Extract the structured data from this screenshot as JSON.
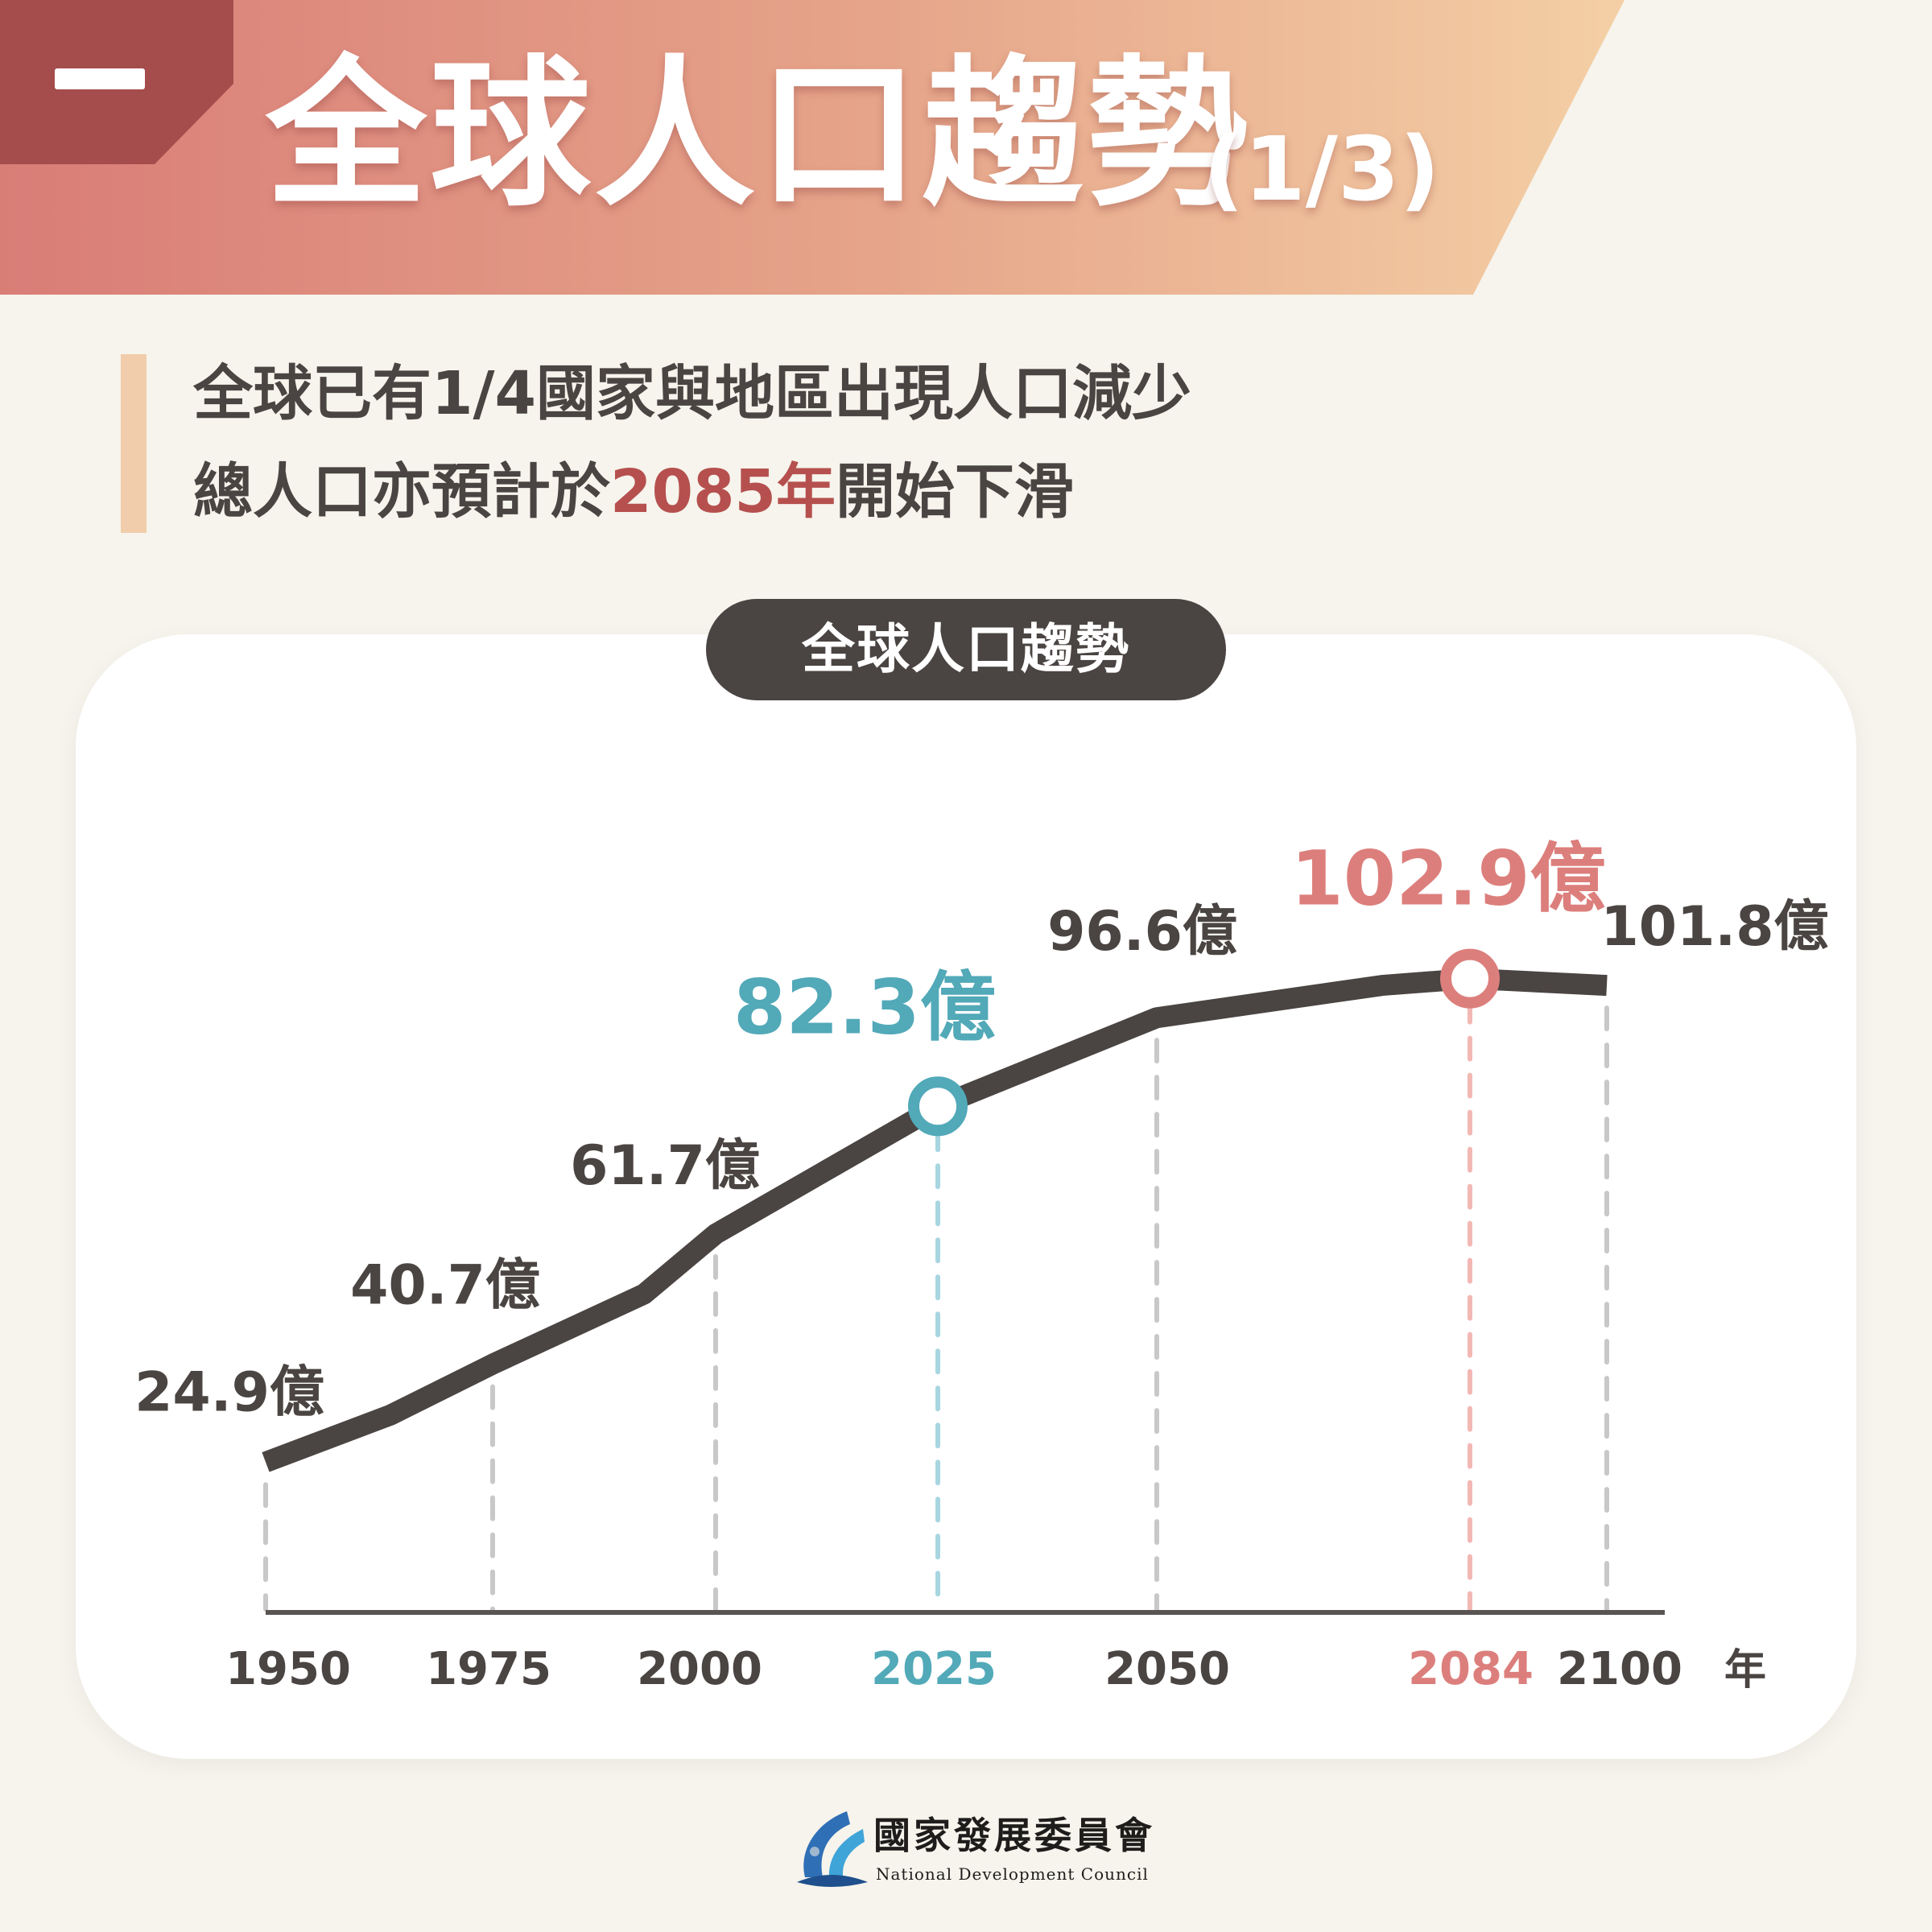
{
  "header": {
    "section_mark": "一",
    "title": "全球人口趨勢",
    "title_suffix": "(1/3)"
  },
  "subtitle": {
    "line1": "全球已有1/4國家與地區出現人口減少",
    "line2_prefix": "總人口亦預計於",
    "line2_highlight": "2085年",
    "line2_suffix": "開始下滑"
  },
  "chart_data": {
    "type": "line",
    "title": "全球人口趨勢",
    "x_unit": "年",
    "x_ticks": [
      "1950",
      "1975",
      "2000",
      "2025",
      "2050",
      "2084",
      "2100"
    ],
    "points": [
      {
        "x": 1950,
        "y": 24.9
      },
      {
        "x": 1964,
        "y": 32.5
      },
      {
        "x": 1975,
        "y": 40.7
      },
      {
        "x": 1990,
        "y": 52.0
      },
      {
        "x": 2000,
        "y": 61.7
      },
      {
        "x": 2025,
        "y": 82.3
      },
      {
        "x": 2050,
        "y": 96.6
      },
      {
        "x": 2070,
        "y": 101.8
      },
      {
        "x": 2084,
        "y": 102.9
      },
      {
        "x": 2100,
        "y": 101.8
      }
    ],
    "labels": [
      {
        "x": 1950,
        "y": 24.9,
        "text": "24.9億"
      },
      {
        "x": 1975,
        "y": 40.7,
        "text": "40.7億"
      },
      {
        "x": 2000,
        "y": 61.7,
        "text": "61.7億"
      },
      {
        "x": 2025,
        "y": 82.3,
        "text": "82.3億",
        "highlight": "teal"
      },
      {
        "x": 2050,
        "y": 96.6,
        "text": "96.6億"
      },
      {
        "x": 2084,
        "y": 102.9,
        "text": "102.9億",
        "highlight": "pink"
      },
      {
        "x": 2100,
        "y": 101.8,
        "text": "101.8億"
      }
    ],
    "highlights": [
      {
        "x": 2025,
        "color": "#52a9b8"
      },
      {
        "x": 2084,
        "color": "#dc7f7c"
      }
    ],
    "colors": {
      "line": "#4a4442",
      "grid": "#c8c8c8",
      "teal": "#52a9b8",
      "teal_light": "#a8d6e0",
      "pink": "#dc7f7c",
      "pink_light": "#f3b8b4",
      "text": "#4a4442"
    }
  },
  "footer": {
    "org_zh": "國家發展委員會",
    "org_en": "National Development Council"
  }
}
